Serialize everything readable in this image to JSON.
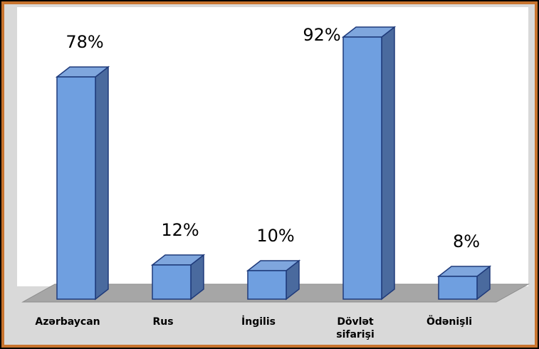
{
  "chart_data": {
    "type": "bar",
    "categories": [
      "Azərbaycan",
      "Rus",
      "İngilis",
      "Dövlət sifarişi",
      "Ödənişli"
    ],
    "values": [
      78,
      12,
      10,
      92,
      8
    ],
    "value_labels": [
      "78%",
      "12%",
      "10%",
      "92%",
      "8%"
    ],
    "color": "#6f9fe0"
  }
}
